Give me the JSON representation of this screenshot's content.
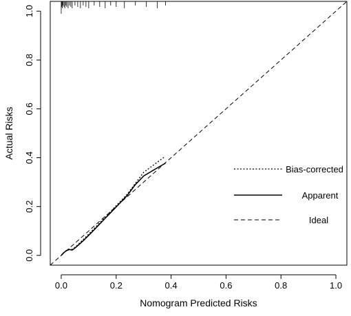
{
  "chart_data": {
    "type": "line",
    "title": "",
    "xlabel": "Nomogram Predicted Risks",
    "ylabel": "Actual Risks",
    "xlim": [
      -0.04,
      1.04
    ],
    "ylim": [
      -0.04,
      1.04
    ],
    "x_ticks": [
      0.0,
      0.2,
      0.4,
      0.6,
      0.8,
      1.0
    ],
    "x_tick_labels": [
      "0.0",
      "0.2",
      "0.4",
      "0.6",
      "0.8",
      "1.0"
    ],
    "y_ticks": [
      0.0,
      0.2,
      0.4,
      0.6,
      0.8,
      1.0
    ],
    "y_tick_labels": [
      "0.0",
      "0.2",
      "0.4",
      "0.6",
      "0.8",
      "1.0"
    ],
    "grid": false,
    "legend_position": "right",
    "series": [
      {
        "name": "Bias-corrected",
        "style": "dotted",
        "x": [
          0.0,
          0.01,
          0.02,
          0.03,
          0.04,
          0.05,
          0.06,
          0.08,
          0.1,
          0.12,
          0.15,
          0.18,
          0.21,
          0.24,
          0.27,
          0.3,
          0.33,
          0.36,
          0.375
        ],
        "y": [
          0.0,
          0.012,
          0.022,
          0.025,
          0.025,
          0.033,
          0.043,
          0.065,
          0.087,
          0.11,
          0.145,
          0.18,
          0.215,
          0.25,
          0.295,
          0.34,
          0.365,
          0.39,
          0.402
        ]
      },
      {
        "name": "Apparent",
        "style": "solid",
        "x": [
          0.0,
          0.01,
          0.02,
          0.03,
          0.04,
          0.05,
          0.06,
          0.08,
          0.1,
          0.12,
          0.15,
          0.18,
          0.21,
          0.24,
          0.27,
          0.3,
          0.33,
          0.36,
          0.38
        ],
        "y": [
          0.0,
          0.012,
          0.02,
          0.024,
          0.022,
          0.03,
          0.04,
          0.06,
          0.082,
          0.105,
          0.14,
          0.175,
          0.21,
          0.245,
          0.29,
          0.325,
          0.345,
          0.365,
          0.378
        ]
      },
      {
        "name": "Ideal",
        "style": "dashed",
        "x": [
          -0.04,
          1.04
        ],
        "y": [
          -0.04,
          1.04
        ]
      }
    ],
    "rug_x": [
      0.0,
      0.002,
      0.004,
      0.006,
      0.01,
      0.013,
      0.017,
      0.02,
      0.025,
      0.03,
      0.035,
      0.04,
      0.05,
      0.06,
      0.07,
      0.08,
      0.09,
      0.1,
      0.12,
      0.14,
      0.16,
      0.18,
      0.2,
      0.23,
      0.27,
      0.31,
      0.35,
      0.38
    ]
  }
}
